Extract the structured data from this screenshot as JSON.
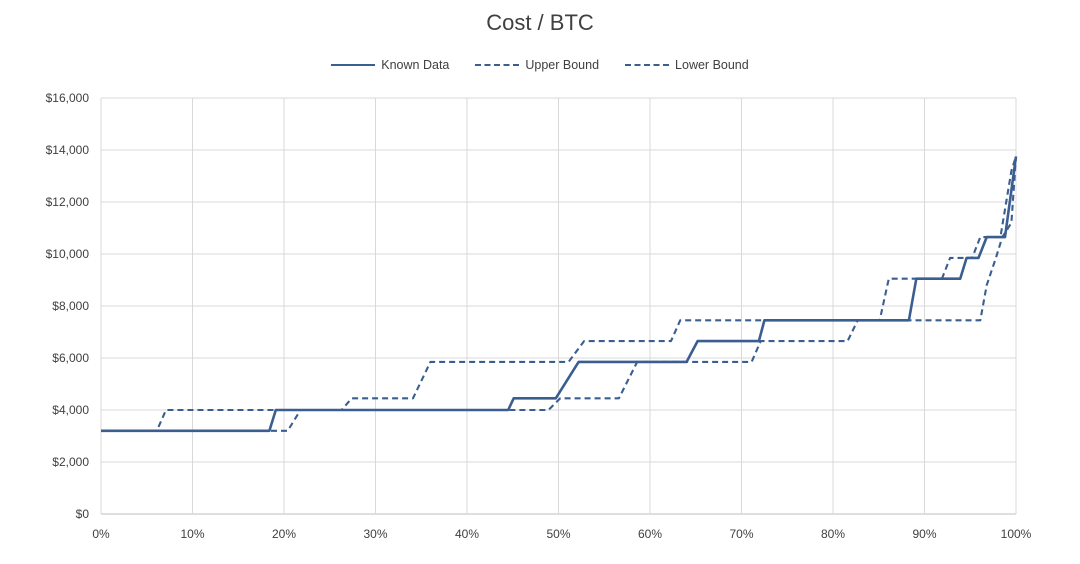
{
  "chart_data": {
    "type": "line",
    "title": "Cost / BTC",
    "xlabel": "",
    "ylabel": "",
    "xlim": [
      0,
      100
    ],
    "ylim": [
      0,
      16000
    ],
    "grid": true,
    "legend_position": "top-center",
    "x_tick_labels": [
      "0%",
      "10%",
      "20%",
      "30%",
      "40%",
      "50%",
      "60%",
      "70%",
      "80%",
      "90%",
      "100%"
    ],
    "y_tick_labels": [
      "$0",
      "$2,000",
      "$4,000",
      "$6,000",
      "$8,000",
      "$10,000",
      "$12,000",
      "$14,000",
      "$16,000"
    ],
    "series": [
      {
        "name": "Known Data",
        "style": "solid",
        "color": "#3b5e91",
        "x": [
          0,
          18.4,
          19.1,
          44.5,
          45.1,
          49.7,
          52.2,
          64.0,
          65.2,
          71.9,
          72.5,
          88.3,
          89.1,
          93.9,
          94.6,
          95.9,
          96.8,
          98.8,
          100
        ],
        "y": [
          3200,
          3200,
          4000,
          4000,
          4450,
          4450,
          5850,
          5850,
          6650,
          6650,
          7450,
          7450,
          9050,
          9050,
          9850,
          9850,
          10650,
          10650,
          13750
        ]
      },
      {
        "name": "Upper Bound",
        "style": "dashed",
        "color": "#3b5e91",
        "x": [
          0,
          6.1,
          7.1,
          26.3,
          27.4,
          34.1,
          36.0,
          51.1,
          52.8,
          62.3,
          63.3,
          85.1,
          86.1,
          91.9,
          92.8,
          95.2,
          96.1,
          98.3,
          99.5,
          100
        ],
        "y": [
          3200,
          3200,
          4000,
          4000,
          4450,
          4450,
          5850,
          5850,
          6650,
          6650,
          7450,
          7450,
          9050,
          9050,
          9850,
          9850,
          10650,
          10650,
          13200,
          13750
        ]
      },
      {
        "name": "Lower Bound",
        "style": "dashed",
        "color": "#3b5e91",
        "x": [
          0,
          20.4,
          21.8,
          48.9,
          50.2,
          56.6,
          58.6,
          71.1,
          72.1,
          81.6,
          82.7,
          96.1,
          96.8,
          97.8,
          98.5,
          99.5,
          100
        ],
        "y": [
          3200,
          3200,
          4000,
          4000,
          4450,
          4450,
          5850,
          5850,
          6650,
          6650,
          7450,
          7450,
          8800,
          9850,
          10650,
          11200,
          13750
        ]
      }
    ]
  }
}
